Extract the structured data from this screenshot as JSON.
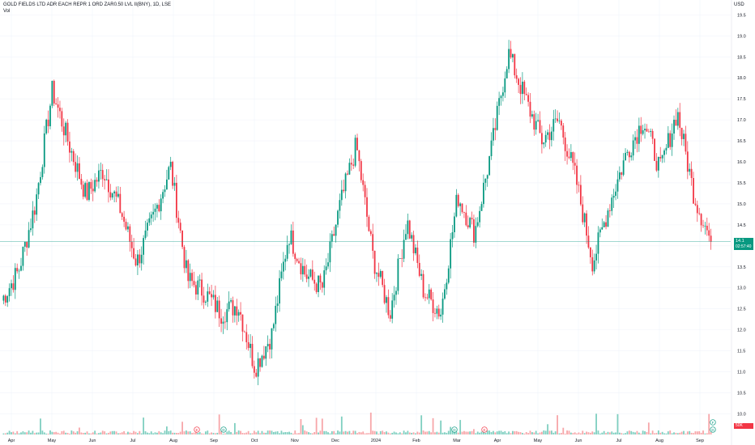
{
  "header": {
    "title": "GOLD FIELDS LTD ADR EACH REPR 1 ORD ZAR0.50 LVL II(BNY), 1D, LSE",
    "volume_label": "Vol",
    "currency": "USD"
  },
  "price_badge": {
    "price": "14.1",
    "countdown": "02:57:40"
  },
  "volume_badge": "50K",
  "event_markers": [
    "E",
    "D",
    "D",
    "E",
    "D",
    "F"
  ],
  "colors": {
    "up": "#089981",
    "down": "#f23645",
    "up_volume": "#7fcfc0",
    "down_volume": "#f7a6a9",
    "price_line": "#089981",
    "grid": "#f0f3fa"
  },
  "chart_data": {
    "type": "candlestick",
    "title": "GOLD FIELDS LTD ADR EACH REPR 1 ORD ZAR0.50 LVL II(BNY), 1D, LSE",
    "y_ticks": [
      "19.5",
      "19.0",
      "18.5",
      "18.0",
      "17.5",
      "17.0",
      "16.5",
      "16.0",
      "15.5",
      "15.0",
      "14.5",
      "14.0",
      "13.5",
      "13.0",
      "12.5",
      "12.0",
      "11.5",
      "11.0",
      "10.5",
      "10.0"
    ],
    "ylim": [
      9.7,
      19.7
    ],
    "x_ticks": [
      "Apr",
      "May",
      "Jun",
      "Jul",
      "Aug",
      "Sep",
      "Oct",
      "Nov",
      "Dec",
      "2024",
      "Feb",
      "Mar",
      "Apr",
      "May",
      "Jun",
      "Jul",
      "Aug",
      "Sep"
    ],
    "last_price": 14.1,
    "approx_close_path": [
      {
        "date": "Apr 2023",
        "close": 12.7
      },
      {
        "date": "Apr 2023",
        "close": 13.4
      },
      {
        "date": "Apr 2023",
        "close": 15.0
      },
      {
        "date": "May 2023",
        "close": 17.7
      },
      {
        "date": "May 2023",
        "close": 16.4
      },
      {
        "date": "May 2023",
        "close": 15.2
      },
      {
        "date": "Jun 2023",
        "close": 15.8
      },
      {
        "date": "Jun 2023",
        "close": 14.9
      },
      {
        "date": "Jul 2023",
        "close": 13.6
      },
      {
        "date": "Jul 2023",
        "close": 14.7
      },
      {
        "date": "Aug 2023",
        "close": 15.9
      },
      {
        "date": "Aug 2023",
        "close": 13.2
      },
      {
        "date": "Aug 2023",
        "close": 12.9
      },
      {
        "date": "Sep 2023",
        "close": 12.4
      },
      {
        "date": "Sep 2023",
        "close": 12.6
      },
      {
        "date": "Oct 2023",
        "close": 11.1
      },
      {
        "date": "Oct 2023",
        "close": 11.9
      },
      {
        "date": "Oct 2023",
        "close": 14.3
      },
      {
        "date": "Nov 2023",
        "close": 13.3
      },
      {
        "date": "Nov 2023",
        "close": 13.0
      },
      {
        "date": "Dec 2023",
        "close": 14.9
      },
      {
        "date": "Dec 2023",
        "close": 16.4
      },
      {
        "date": "Jan 2024",
        "close": 13.7
      },
      {
        "date": "Jan 2024",
        "close": 12.4
      },
      {
        "date": "Feb 2024",
        "close": 14.6
      },
      {
        "date": "Feb 2024",
        "close": 12.9
      },
      {
        "date": "Mar 2024",
        "close": 12.4
      },
      {
        "date": "Mar 2024",
        "close": 15.2
      },
      {
        "date": "Mar 2024",
        "close": 14.3
      },
      {
        "date": "Apr 2024",
        "close": 16.3
      },
      {
        "date": "Apr 2024",
        "close": 18.6
      },
      {
        "date": "Apr 2024",
        "close": 17.5
      },
      {
        "date": "May 2024",
        "close": 16.5
      },
      {
        "date": "May 2024",
        "close": 17.0
      },
      {
        "date": "Jun 2024",
        "close": 15.6
      },
      {
        "date": "Jun 2024",
        "close": 13.6
      },
      {
        "date": "Jun 2024",
        "close": 15.0
      },
      {
        "date": "Jul 2024",
        "close": 16.2
      },
      {
        "date": "Jul 2024",
        "close": 17.0
      },
      {
        "date": "Aug 2024",
        "close": 15.8
      },
      {
        "date": "Aug 2024",
        "close": 17.2
      },
      {
        "date": "Aug 2024",
        "close": 15.2
      },
      {
        "date": "Sep 2024",
        "close": 14.1
      }
    ]
  }
}
